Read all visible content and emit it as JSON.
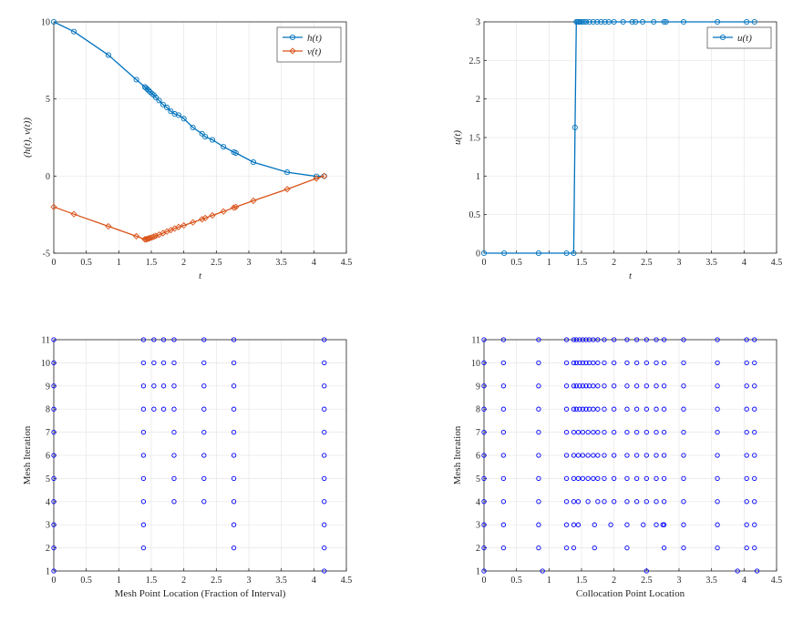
{
  "colors": {
    "blue": "#0072bd",
    "orange": "#d95319",
    "meshblue": "#0000ff"
  },
  "chart_data": [
    {
      "type": "line",
      "xlabel": "t",
      "ylabel": "(h(t), v(t))",
      "xlim": [
        0,
        4.5
      ],
      "ylim": [
        -5,
        10
      ],
      "xticks": [
        0,
        0.5,
        1,
        1.5,
        2,
        2.5,
        3,
        3.5,
        4,
        4.5
      ],
      "yticks": [
        -5,
        0,
        5,
        10
      ],
      "xtick_labels": [
        "0",
        "0.5",
        "1",
        "1.5",
        "2",
        "2.5",
        "3",
        "3.5",
        "4",
        "4.5"
      ],
      "ytick_labels": [
        "-5",
        "0",
        "5",
        "10"
      ],
      "legend": "top-right",
      "series": [
        {
          "name": "h(t)",
          "label": "h(t)",
          "color": "#0072bd",
          "marker": "circle",
          "x": [
            0,
            0.31,
            0.84,
            1.27,
            1.4,
            1.42,
            1.44,
            1.46,
            1.48,
            1.51,
            1.54,
            1.57,
            1.62,
            1.68,
            1.74,
            1.8,
            1.86,
            1.92,
            2.0,
            2.14,
            2.28,
            2.33,
            2.44,
            2.61,
            2.77,
            2.8,
            3.07,
            3.59,
            4.04,
            4.16
          ],
          "y": [
            10.0,
            9.37,
            7.85,
            6.25,
            5.78,
            5.71,
            5.63,
            5.55,
            5.46,
            5.35,
            5.25,
            5.1,
            4.9,
            4.64,
            4.45,
            4.2,
            4.03,
            3.95,
            3.72,
            3.15,
            2.75,
            2.55,
            2.35,
            1.9,
            1.55,
            1.5,
            0.9,
            0.25,
            -0.02,
            0.0
          ]
        },
        {
          "name": "v(t)",
          "label": "v(t)",
          "color": "#d95319",
          "marker": "diamond",
          "x": [
            0,
            0.31,
            0.84,
            1.27,
            1.4,
            1.42,
            1.44,
            1.46,
            1.48,
            1.51,
            1.54,
            1.57,
            1.62,
            1.68,
            1.74,
            1.8,
            1.86,
            1.92,
            2.0,
            2.14,
            2.28,
            2.33,
            2.44,
            2.61,
            2.77,
            2.8,
            3.07,
            3.59,
            4.04,
            4.16
          ],
          "y": [
            -2.0,
            -2.47,
            -3.26,
            -3.9,
            -4.1,
            -4.1,
            -4.08,
            -4.05,
            -4.02,
            -3.98,
            -3.93,
            -3.88,
            -3.8,
            -3.7,
            -3.6,
            -3.5,
            -3.4,
            -3.3,
            -3.2,
            -3.0,
            -2.8,
            -2.72,
            -2.55,
            -2.3,
            -2.05,
            -2.0,
            -1.6,
            -0.85,
            -0.15,
            0.0
          ]
        }
      ]
    },
    {
      "type": "line",
      "xlabel": "t",
      "ylabel": "u(t)",
      "xlim": [
        0,
        4.5
      ],
      "ylim": [
        0,
        3
      ],
      "xticks": [
        0,
        0.5,
        1,
        1.5,
        2,
        2.5,
        3,
        3.5,
        4,
        4.5
      ],
      "yticks": [
        0,
        0.5,
        1,
        1.5,
        2,
        2.5,
        3
      ],
      "xtick_labels": [
        "0",
        "0.5",
        "1",
        "1.5",
        "2",
        "2.5",
        "3",
        "3.5",
        "4",
        "4.5"
      ],
      "ytick_labels": [
        "0",
        "0.5",
        "1",
        "1.5",
        "2",
        "2.5",
        "3"
      ],
      "legend": "top-right",
      "series": [
        {
          "name": "u(t)",
          "label": "u(t)",
          "color": "#0072bd",
          "marker": "circle",
          "x": [
            0,
            0.31,
            0.84,
            1.27,
            1.38,
            1.4,
            1.42,
            1.44,
            1.46,
            1.48,
            1.51,
            1.54,
            1.57,
            1.62,
            1.68,
            1.74,
            1.8,
            1.86,
            1.92,
            2.0,
            2.14,
            2.28,
            2.33,
            2.44,
            2.61,
            2.77,
            2.8,
            3.07,
            3.59,
            4.04,
            4.16
          ],
          "y": [
            0,
            0,
            0,
            0,
            0,
            1.63,
            3,
            3,
            3,
            3,
            3,
            3,
            3,
            3,
            3,
            3,
            3,
            3,
            3,
            3,
            3,
            3,
            3,
            3,
            3,
            3,
            3,
            3,
            3,
            3,
            3
          ]
        }
      ]
    },
    {
      "type": "scatter",
      "xlabel": "Mesh Point Location (Fraction of Interval)",
      "ylabel": "Mesh Iteration",
      "xlim": [
        0,
        4.5
      ],
      "ylim": [
        1,
        11
      ],
      "xticks": [
        0,
        0.5,
        1,
        1.5,
        2,
        2.5,
        3,
        3.5,
        4,
        4.5
      ],
      "yticks": [
        1,
        2,
        3,
        4,
        5,
        6,
        7,
        8,
        9,
        10,
        11
      ],
      "xtick_labels": [
        "0",
        "0.5",
        "1",
        "1.5",
        "2",
        "2.5",
        "3",
        "3.5",
        "4",
        "4.5"
      ],
      "ytick_labels": [
        "1",
        "2",
        "3",
        "4",
        "5",
        "6",
        "7",
        "8",
        "9",
        "10",
        "11"
      ],
      "rows": [
        {
          "iteration": 1,
          "x": [
            0,
            4.16
          ]
        },
        {
          "iteration": 2,
          "x": [
            0,
            1.38,
            2.77,
            4.16
          ]
        },
        {
          "iteration": 3,
          "x": [
            0,
            1.38,
            2.77,
            4.16
          ]
        },
        {
          "iteration": 4,
          "x": [
            0,
            1.38,
            1.85,
            2.31,
            2.77,
            4.16
          ]
        },
        {
          "iteration": 5,
          "x": [
            0,
            1.38,
            1.85,
            2.31,
            2.77,
            4.16
          ]
        },
        {
          "iteration": 6,
          "x": [
            0,
            1.38,
            1.85,
            2.31,
            2.77,
            4.16
          ]
        },
        {
          "iteration": 7,
          "x": [
            0,
            1.38,
            1.85,
            2.31,
            2.77,
            4.16
          ]
        },
        {
          "iteration": 8,
          "x": [
            0,
            1.38,
            1.54,
            1.69,
            1.85,
            2.31,
            2.77,
            4.16
          ]
        },
        {
          "iteration": 9,
          "x": [
            0,
            1.38,
            1.54,
            1.69,
            1.85,
            2.31,
            2.77,
            4.16
          ]
        },
        {
          "iteration": 10,
          "x": [
            0,
            1.38,
            1.54,
            1.69,
            1.85,
            2.31,
            2.77,
            4.16
          ]
        },
        {
          "iteration": 11,
          "x": [
            0,
            1.38,
            1.54,
            1.69,
            1.85,
            2.31,
            2.77,
            4.16
          ]
        }
      ]
    },
    {
      "type": "scatter",
      "xlabel": "Collocation Point Location",
      "ylabel": "Mesh Iteration",
      "xlim": [
        0,
        4.5
      ],
      "ylim": [
        1,
        11
      ],
      "xticks": [
        0,
        0.5,
        1,
        1.5,
        2,
        2.5,
        3,
        3.5,
        4,
        4.5
      ],
      "yticks": [
        1,
        2,
        3,
        4,
        5,
        6,
        7,
        8,
        9,
        10,
        11
      ],
      "xtick_labels": [
        "0",
        "0.5",
        "1",
        "1.5",
        "2",
        "2.5",
        "3",
        "3.5",
        "4",
        "4.5"
      ],
      "ytick_labels": [
        "1",
        "2",
        "3",
        "4",
        "5",
        "6",
        "7",
        "8",
        "9",
        "10",
        "11"
      ],
      "rows": [
        {
          "iteration": 1,
          "x": [
            0,
            0.9,
            2.5,
            3.9,
            4.2
          ]
        },
        {
          "iteration": 2,
          "x": [
            0,
            0.3,
            0.84,
            1.27,
            1.38,
            1.7,
            2.2,
            2.77,
            3.07,
            3.59,
            4.04,
            4.16
          ]
        },
        {
          "iteration": 3,
          "x": [
            0,
            0.3,
            0.84,
            1.27,
            1.38,
            1.45,
            1.7,
            1.95,
            2.2,
            2.45,
            2.65,
            2.75,
            2.77,
            3.07,
            3.59,
            4.04,
            4.16
          ]
        },
        {
          "iteration": 4,
          "x": [
            0,
            0.3,
            0.84,
            1.27,
            1.38,
            1.45,
            1.6,
            1.75,
            1.85,
            2.0,
            2.2,
            2.35,
            2.5,
            2.65,
            2.77,
            3.07,
            3.59,
            4.04,
            4.16
          ]
        },
        {
          "iteration": 5,
          "x": [
            0,
            0.3,
            0.84,
            1.27,
            1.38,
            1.45,
            1.52,
            1.6,
            1.68,
            1.75,
            1.85,
            2.0,
            2.2,
            2.35,
            2.5,
            2.65,
            2.77,
            3.07,
            3.59,
            4.04,
            4.16
          ]
        },
        {
          "iteration": 6,
          "x": [
            0,
            0.3,
            0.84,
            1.27,
            1.38,
            1.45,
            1.52,
            1.6,
            1.68,
            1.75,
            1.85,
            2.0,
            2.2,
            2.35,
            2.5,
            2.65,
            2.77,
            3.07,
            3.59,
            4.04,
            4.16
          ]
        },
        {
          "iteration": 7,
          "x": [
            0,
            0.3,
            0.84,
            1.27,
            1.38,
            1.45,
            1.52,
            1.6,
            1.68,
            1.75,
            1.85,
            2.0,
            2.2,
            2.35,
            2.5,
            2.65,
            2.77,
            3.07,
            3.59,
            4.04,
            4.16
          ]
        },
        {
          "iteration": 8,
          "x": [
            0,
            0.3,
            0.84,
            1.27,
            1.38,
            1.42,
            1.47,
            1.52,
            1.57,
            1.62,
            1.68,
            1.75,
            1.85,
            2.0,
            2.2,
            2.35,
            2.5,
            2.65,
            2.77,
            3.07,
            3.59,
            4.04,
            4.16
          ]
        },
        {
          "iteration": 9,
          "x": [
            0,
            0.3,
            0.84,
            1.27,
            1.38,
            1.42,
            1.47,
            1.52,
            1.57,
            1.62,
            1.68,
            1.75,
            1.85,
            2.0,
            2.2,
            2.35,
            2.5,
            2.65,
            2.77,
            3.07,
            3.59,
            4.04,
            4.16
          ]
        },
        {
          "iteration": 10,
          "x": [
            0,
            0.3,
            0.84,
            1.27,
            1.38,
            1.42,
            1.47,
            1.52,
            1.57,
            1.62,
            1.68,
            1.75,
            1.85,
            2.0,
            2.2,
            2.35,
            2.5,
            2.65,
            2.77,
            3.07,
            3.59,
            4.04,
            4.16
          ]
        },
        {
          "iteration": 11,
          "x": [
            0,
            0.3,
            0.84,
            1.27,
            1.38,
            1.42,
            1.47,
            1.52,
            1.57,
            1.62,
            1.68,
            1.75,
            1.85,
            2.0,
            2.2,
            2.35,
            2.5,
            2.65,
            2.77,
            3.07,
            3.59,
            4.04,
            4.16
          ]
        }
      ]
    }
  ]
}
